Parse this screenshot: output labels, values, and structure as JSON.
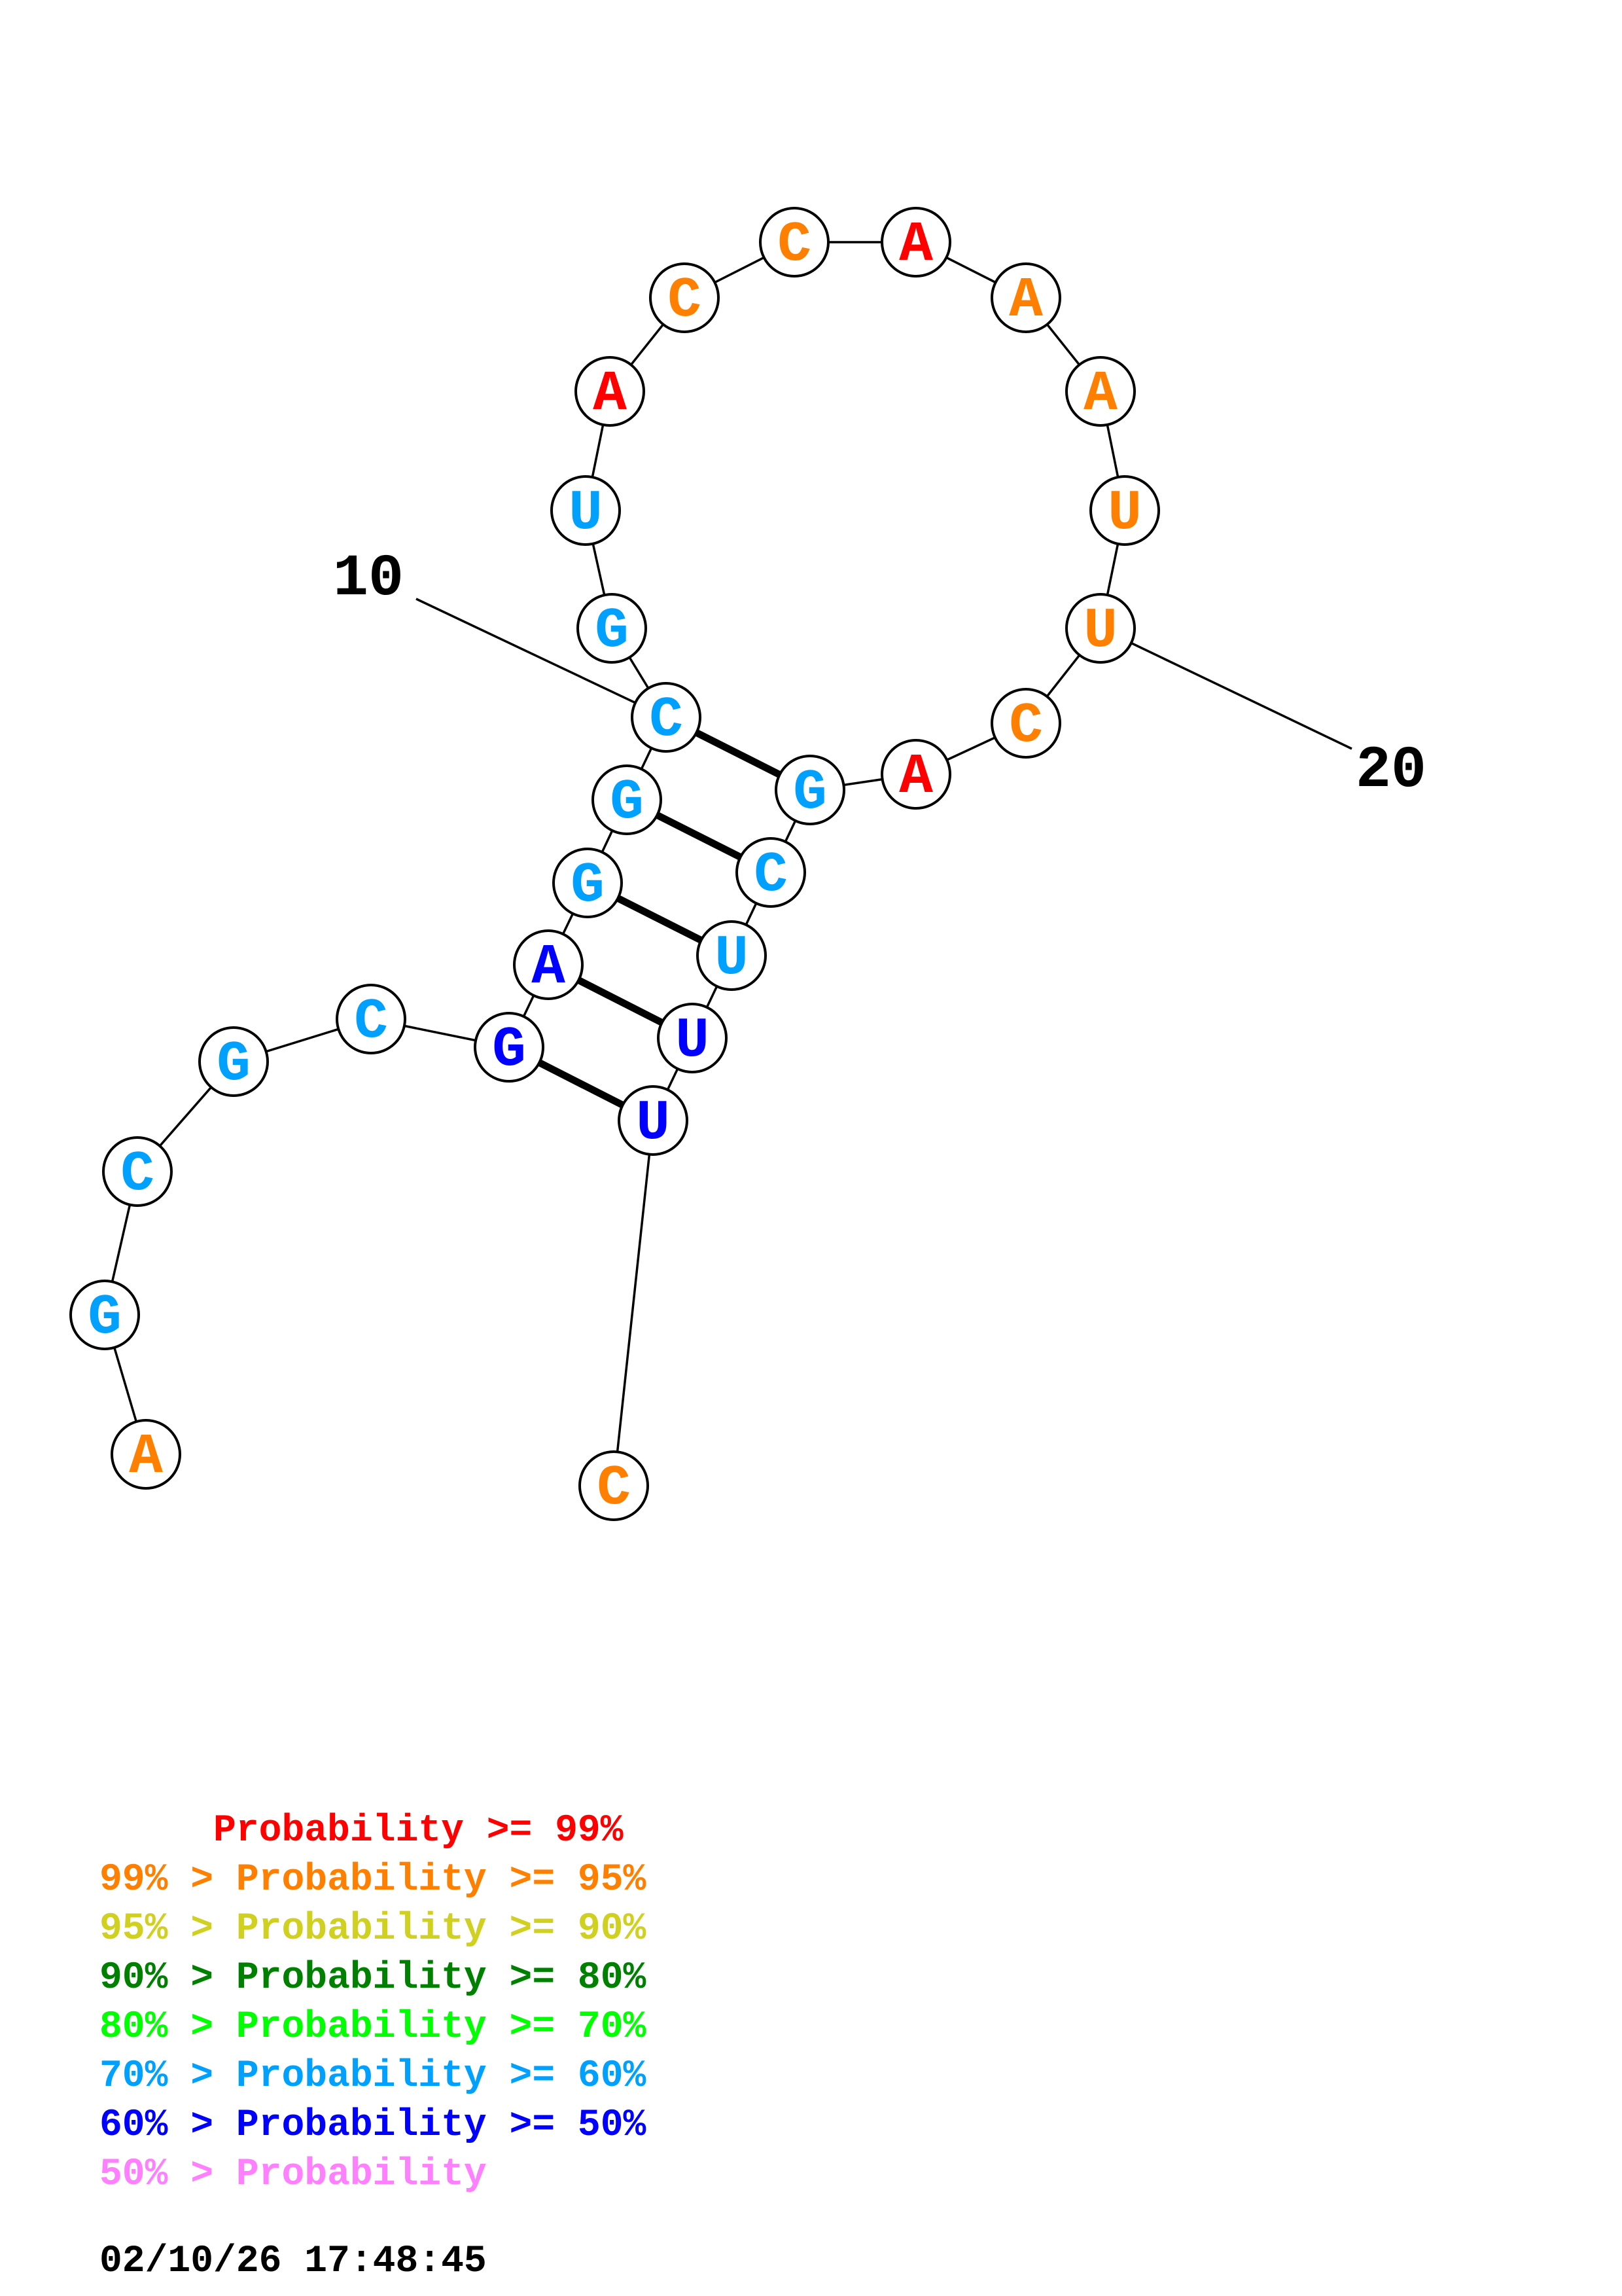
{
  "colors": {
    "ge99": "#ff0000",
    "ge95": "#ff8000",
    "ge90": "#d0d020",
    "ge80": "#008000",
    "ge70": "#00ff00",
    "ge60": "#00a0ff",
    "ge50": "#0000ff",
    "lt50": "#ff80ff"
  },
  "nucleotides": [
    {
      "index": 1,
      "base": "A",
      "color": "#ff8000"
    },
    {
      "index": 2,
      "base": "G",
      "color": "#00a0ff"
    },
    {
      "index": 3,
      "base": "C",
      "color": "#00a0ff"
    },
    {
      "index": 4,
      "base": "G",
      "color": "#00a0ff"
    },
    {
      "index": 5,
      "base": "C",
      "color": "#00a0ff"
    },
    {
      "index": 6,
      "base": "G",
      "color": "#0000ff"
    },
    {
      "index": 7,
      "base": "A",
      "color": "#0000ff"
    },
    {
      "index": 8,
      "base": "G",
      "color": "#00a0ff"
    },
    {
      "index": 9,
      "base": "G",
      "color": "#00a0ff"
    },
    {
      "index": 10,
      "base": "C",
      "color": "#00a0ff"
    },
    {
      "index": 11,
      "base": "G",
      "color": "#00a0ff"
    },
    {
      "index": 12,
      "base": "U",
      "color": "#00a0ff"
    },
    {
      "index": 13,
      "base": "A",
      "color": "#ff0000"
    },
    {
      "index": 14,
      "base": "C",
      "color": "#ff8000"
    },
    {
      "index": 15,
      "base": "C",
      "color": "#ff8000"
    },
    {
      "index": 16,
      "base": "A",
      "color": "#ff0000"
    },
    {
      "index": 17,
      "base": "A",
      "color": "#ff8000"
    },
    {
      "index": 18,
      "base": "A",
      "color": "#ff8000"
    },
    {
      "index": 19,
      "base": "U",
      "color": "#ff8000"
    },
    {
      "index": 20,
      "base": "U",
      "color": "#ff8000"
    },
    {
      "index": 21,
      "base": "C",
      "color": "#ff8000"
    },
    {
      "index": 22,
      "base": "A",
      "color": "#ff0000"
    },
    {
      "index": 23,
      "base": "G",
      "color": "#00a0ff"
    },
    {
      "index": 24,
      "base": "C",
      "color": "#00a0ff"
    },
    {
      "index": 25,
      "base": "U",
      "color": "#00a0ff"
    },
    {
      "index": 26,
      "base": "U",
      "color": "#0000ff"
    },
    {
      "index": 27,
      "base": "U",
      "color": "#0000ff"
    },
    {
      "index": 28,
      "base": "C",
      "color": "#ff8000"
    }
  ],
  "pairs": [
    [
      6,
      27
    ],
    [
      7,
      26
    ],
    [
      8,
      25
    ],
    [
      9,
      24
    ],
    [
      10,
      23
    ]
  ],
  "position_labels": [
    {
      "text": "10",
      "nucleotide": 10
    },
    {
      "text": "20",
      "nucleotide": 20
    }
  ],
  "legend": [
    {
      "prefix": "     ",
      "text": "Probability >= 99%",
      "color": "#ff0000"
    },
    {
      "prefix": "99% > ",
      "text": "Probability >= 95%",
      "color": "#ff8000"
    },
    {
      "prefix": "95% > ",
      "text": "Probability >= 90%",
      "color": "#d0d020"
    },
    {
      "prefix": "90% > ",
      "text": "Probability >= 80%",
      "color": "#008000"
    },
    {
      "prefix": "80% > ",
      "text": "Probability >= 70%",
      "color": "#00ff00"
    },
    {
      "prefix": "70% > ",
      "text": "Probability >= 60%",
      "color": "#00a0ff"
    },
    {
      "prefix": "60% > ",
      "text": "Probability >= 50%",
      "color": "#0000ff"
    },
    {
      "prefix": "50% > ",
      "text": "Probability",
      "color": "#ff80ff"
    }
  ],
  "timestamp": "02/10/26 17:48:45"
}
